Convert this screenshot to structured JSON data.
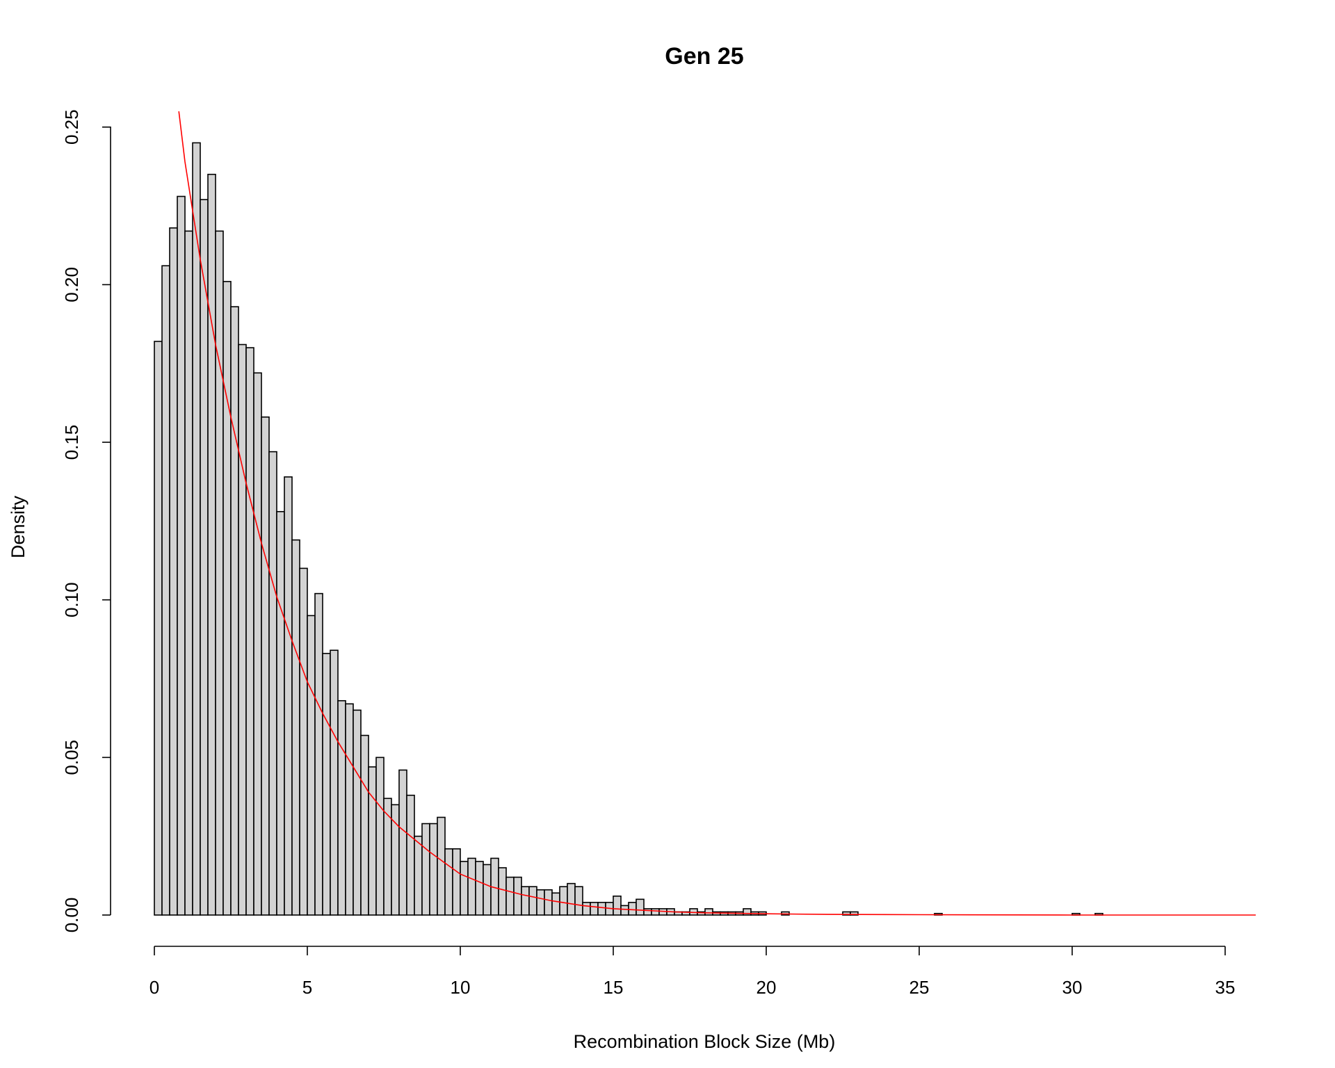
{
  "chart_data": {
    "type": "bar",
    "title": "Gen 25",
    "xlabel": "Recombination Block Size (Mb)",
    "ylabel": "Density",
    "xlim": [
      0,
      35
    ],
    "ylim": [
      0,
      0.25
    ],
    "x_ticks": [
      "0",
      "5",
      "10",
      "15",
      "20",
      "25",
      "30",
      "35"
    ],
    "y_ticks": [
      "0.00",
      "0.05",
      "0.10",
      "0.15",
      "0.20",
      "0.25"
    ],
    "bin_width": 0.25,
    "histogram": {
      "bin_start": [
        0,
        0.25,
        0.5,
        0.75,
        1.0,
        1.25,
        1.5,
        1.75,
        2.0,
        2.25,
        2.5,
        2.75,
        3.0,
        3.25,
        3.5,
        3.75,
        4.0,
        4.25,
        4.5,
        4.75,
        5.0,
        5.25,
        5.5,
        5.75,
        6.0,
        6.25,
        6.5,
        6.75,
        7.0,
        7.25,
        7.5,
        7.75,
        8.0,
        8.25,
        8.5,
        8.75,
        9.0,
        9.25,
        9.5,
        9.75,
        10.0,
        10.25,
        10.5,
        10.75,
        11.0,
        11.25,
        11.5,
        11.75,
        12.0,
        12.25,
        12.5,
        12.75,
        13.0,
        13.25,
        13.5,
        13.75,
        14.0,
        14.25,
        14.5,
        14.75,
        15.0,
        15.25,
        15.5,
        15.75,
        16.0,
        16.25,
        16.5,
        16.75,
        17.0,
        17.25,
        17.5,
        17.75,
        18.0,
        18.25,
        18.5,
        18.75,
        19.0,
        19.25,
        19.5,
        19.75,
        20.5,
        22.5,
        22.75,
        25.5,
        30.0,
        30.75
      ],
      "density": [
        0.182,
        0.206,
        0.218,
        0.228,
        0.217,
        0.245,
        0.227,
        0.235,
        0.217,
        0.201,
        0.193,
        0.181,
        0.18,
        0.172,
        0.158,
        0.147,
        0.128,
        0.139,
        0.119,
        0.11,
        0.095,
        0.102,
        0.083,
        0.084,
        0.068,
        0.067,
        0.065,
        0.057,
        0.047,
        0.05,
        0.037,
        0.035,
        0.046,
        0.038,
        0.025,
        0.029,
        0.029,
        0.031,
        0.021,
        0.021,
        0.017,
        0.018,
        0.017,
        0.016,
        0.018,
        0.015,
        0.012,
        0.012,
        0.009,
        0.009,
        0.008,
        0.008,
        0.007,
        0.009,
        0.01,
        0.009,
        0.004,
        0.004,
        0.004,
        0.004,
        0.006,
        0.003,
        0.004,
        0.005,
        0.002,
        0.002,
        0.002,
        0.002,
        0.001,
        0.001,
        0.002,
        0.001,
        0.002,
        0.001,
        0.001,
        0.001,
        0.001,
        0.002,
        0.001,
        0.001,
        0.001,
        0.001,
        0.001,
        0.0005,
        0.0005,
        0.0005
      ]
    },
    "fit_curve": {
      "color": "#ff0000",
      "x": [
        0.8,
        1.0,
        1.5,
        2.0,
        2.5,
        3.0,
        3.5,
        4.0,
        4.5,
        5.0,
        5.5,
        6.0,
        6.5,
        7.0,
        7.5,
        8.0,
        9.0,
        10.0,
        11.0,
        12.0,
        13.0,
        14.0,
        15.0,
        16.0,
        17.0,
        18.0,
        20.0,
        22.0,
        25.0,
        30.0,
        36.0
      ],
      "y": [
        0.255,
        0.239,
        0.208,
        0.181,
        0.158,
        0.137,
        0.118,
        0.101,
        0.087,
        0.074,
        0.064,
        0.055,
        0.047,
        0.039,
        0.033,
        0.028,
        0.02,
        0.013,
        0.009,
        0.0065,
        0.0045,
        0.003,
        0.002,
        0.0015,
        0.001,
        0.0007,
        0.0004,
        0.0002,
        0.0001,
        0.0,
        0.0
      ]
    },
    "colors": {
      "bar_fill": "#d3d3d3",
      "bar_stroke": "#000000",
      "curve": "#ff0000"
    },
    "grid": false,
    "legend": "none"
  }
}
